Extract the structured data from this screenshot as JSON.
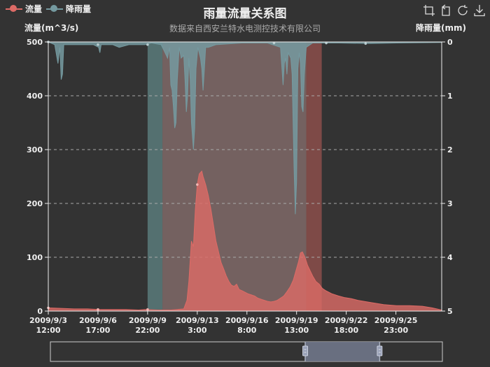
{
  "title": "雨量流量关系图",
  "subtitle": "数据来自西安兰特水电测控技术有限公司",
  "legend": [
    {
      "name": "流量",
      "color": "#dd6b66"
    },
    {
      "name": "降雨量",
      "color": "#759aa0"
    }
  ],
  "toolbox": [
    "zoom-icon",
    "zoom-reset-icon",
    "restore-icon",
    "save-image-icon"
  ],
  "chart_data": {
    "type": "area",
    "title": "雨量流量关系图",
    "subtitle": "数据来自西安兰特水电测控技术有限公司",
    "x": {
      "ticks": [
        {
          "date": "2009/9/3",
          "time": "12:00",
          "t": 0
        },
        {
          "date": "2009/9/6",
          "time": "17:00",
          "t": 77
        },
        {
          "date": "2009/9/9",
          "time": "22:00",
          "t": 154
        },
        {
          "date": "2009/9/13",
          "time": "3:00",
          "t": 231
        },
        {
          "date": "2009/9/16",
          "time": "8:00",
          "t": 308
        },
        {
          "date": "2009/9/19",
          "time": "13:00",
          "t": 385
        },
        {
          "date": "2009/9/22",
          "time": "18:00",
          "t": 462
        },
        {
          "date": "2009/9/25",
          "time": "23:00",
          "t": 539
        }
      ],
      "range_hours": [
        0,
        610
      ]
    },
    "y_left": {
      "label": "流量(m^3/s)",
      "ylim": [
        0,
        500
      ],
      "ticks": [
        0,
        100,
        200,
        300,
        400,
        500
      ]
    },
    "y_right": {
      "label": "降雨量(mm)",
      "ylim": [
        0,
        5
      ],
      "ticks": [
        0,
        1,
        2,
        3,
        4,
        5
      ],
      "inverse": true
    },
    "grid": "dashed horizontal",
    "series": [
      {
        "name": "流量",
        "axis": "left",
        "color": "#dd6b66",
        "points": [
          [
            0,
            6
          ],
          [
            20,
            5
          ],
          [
            40,
            4
          ],
          [
            60,
            4
          ],
          [
            80,
            3
          ],
          [
            100,
            3
          ],
          [
            120,
            3
          ],
          [
            140,
            2
          ],
          [
            150,
            3
          ],
          [
            170,
            2
          ],
          [
            190,
            2
          ],
          [
            200,
            3
          ],
          [
            210,
            4
          ],
          [
            215,
            20
          ],
          [
            218,
            55
          ],
          [
            220,
            95
          ],
          [
            222,
            130
          ],
          [
            225,
            120
          ],
          [
            228,
            190
          ],
          [
            231,
            235
          ],
          [
            234,
            255
          ],
          [
            238,
            260
          ],
          [
            240,
            250
          ],
          [
            244,
            235
          ],
          [
            248,
            215
          ],
          [
            252,
            190
          ],
          [
            256,
            160
          ],
          [
            260,
            130
          ],
          [
            264,
            110
          ],
          [
            268,
            90
          ],
          [
            272,
            78
          ],
          [
            276,
            65
          ],
          [
            280,
            55
          ],
          [
            284,
            48
          ],
          [
            288,
            46
          ],
          [
            292,
            50
          ],
          [
            296,
            40
          ],
          [
            300,
            38
          ],
          [
            305,
            35
          ],
          [
            310,
            32
          ],
          [
            315,
            30
          ],
          [
            320,
            28
          ],
          [
            325,
            24
          ],
          [
            330,
            22
          ],
          [
            335,
            20
          ],
          [
            340,
            18
          ],
          [
            345,
            17
          ],
          [
            350,
            18
          ],
          [
            355,
            20
          ],
          [
            360,
            24
          ],
          [
            365,
            28
          ],
          [
            370,
            36
          ],
          [
            375,
            45
          ],
          [
            380,
            58
          ],
          [
            384,
            75
          ],
          [
            388,
            92
          ],
          [
            391,
            108
          ],
          [
            394,
            110
          ],
          [
            398,
            100
          ],
          [
            402,
            85
          ],
          [
            406,
            75
          ],
          [
            410,
            65
          ],
          [
            415,
            55
          ],
          [
            420,
            50
          ],
          [
            425,
            42
          ],
          [
            430,
            38
          ],
          [
            435,
            35
          ],
          [
            440,
            32
          ],
          [
            450,
            28
          ],
          [
            460,
            25
          ],
          [
            470,
            23
          ],
          [
            480,
            20
          ],
          [
            500,
            16
          ],
          [
            520,
            12
          ],
          [
            540,
            10
          ],
          [
            560,
            10
          ],
          [
            580,
            9
          ],
          [
            595,
            6
          ],
          [
            610,
            2
          ]
        ]
      },
      {
        "name": "降雨量",
        "axis": "right",
        "color": "#759aa0",
        "points": [
          [
            0,
            0
          ],
          [
            10,
            0.05
          ],
          [
            15,
            0.4
          ],
          [
            18,
            0.1
          ],
          [
            20,
            0.7
          ],
          [
            22,
            0.6
          ],
          [
            24,
            0.05
          ],
          [
            60,
            0.05
          ],
          [
            70,
            0.05
          ],
          [
            78,
            0.1
          ],
          [
            80,
            0.2
          ],
          [
            82,
            0.05
          ],
          [
            100,
            0.05
          ],
          [
            110,
            0.1
          ],
          [
            125,
            0.05
          ],
          [
            150,
            0.05
          ],
          [
            160,
            0.02
          ],
          [
            175,
            0.05
          ],
          [
            181,
            0.2
          ],
          [
            185,
            0.3
          ],
          [
            188,
            0.1
          ],
          [
            190,
            0.8
          ],
          [
            192,
            0.9
          ],
          [
            194,
            1.2
          ],
          [
            196,
            1.6
          ],
          [
            198,
            1.5
          ],
          [
            200,
            0.7
          ],
          [
            203,
            0.1
          ],
          [
            206,
            0.3
          ],
          [
            210,
            0.25
          ],
          [
            212,
            0.7
          ],
          [
            214,
            1.3
          ],
          [
            216,
            1.0
          ],
          [
            218,
            0.3
          ],
          [
            220,
            0.7
          ],
          [
            222,
            1.5
          ],
          [
            225,
            2.0
          ],
          [
            227,
            1.6
          ],
          [
            229,
            0.5
          ],
          [
            232,
            0.1
          ],
          [
            236,
            0.3
          ],
          [
            238,
            0.5
          ],
          [
            240,
            0.9
          ],
          [
            242,
            0.5
          ],
          [
            244,
            0.1
          ],
          [
            248,
            0.1
          ],
          [
            260,
            0.05
          ],
          [
            300,
            0.02
          ],
          [
            340,
            0.02
          ],
          [
            360,
            0.1
          ],
          [
            364,
            0.8
          ],
          [
            366,
            0.4
          ],
          [
            368,
            0.3
          ],
          [
            370,
            0.6
          ],
          [
            372,
            0.2
          ],
          [
            376,
            0.3
          ],
          [
            378,
            0.6
          ],
          [
            381,
            2.3
          ],
          [
            383,
            3.2
          ],
          [
            385,
            2.6
          ],
          [
            387,
            0.5
          ],
          [
            389,
            0.2
          ],
          [
            391,
            0.4
          ],
          [
            393,
            1.2
          ],
          [
            395,
            1.3
          ],
          [
            397,
            0.6
          ],
          [
            400,
            0.1
          ],
          [
            410,
            0.02
          ],
          [
            450,
            0.02
          ],
          [
            500,
            0.03
          ],
          [
            540,
            0.02
          ],
          [
            610,
            0.01
          ]
        ]
      }
    ],
    "mark_areas": [
      {
        "from": 154,
        "to": 177,
        "color": "#6a9a99"
      },
      {
        "from": 177,
        "to": 400,
        "color": "#a0807e"
      },
      {
        "from": 400,
        "to": 424,
        "color": "#b05a55"
      }
    ],
    "data_zoom": {
      "start_pct": 65,
      "end_pct": 84
    }
  }
}
